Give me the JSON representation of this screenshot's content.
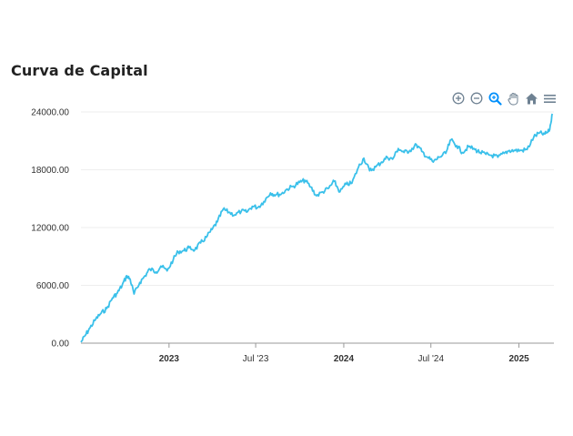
{
  "header": {
    "title": "Curva de Capital"
  },
  "toolbar": {
    "icons": [
      "zoom-in-icon",
      "zoom-out-icon",
      "zoom-selection-icon",
      "pan-hand-icon",
      "reset-home-icon",
      "menu-icon"
    ]
  },
  "colors": {
    "line": "#3ac0ea",
    "grid": "#eeeeee",
    "axis": "#999999",
    "tool": "#6e8192",
    "tool_active": "#008ffb"
  },
  "chart_data": {
    "type": "line",
    "title": "Curva de Capital",
    "xlabel": "",
    "ylabel": "",
    "xlim": [
      "2022-07-01",
      "2025-03-15"
    ],
    "ylim": [
      0,
      24000
    ],
    "grid": true,
    "y_ticks": [
      "24000.00",
      "18000.00",
      "12000.00",
      "6000.00",
      "0.00"
    ],
    "y_tick_values": [
      24000,
      18000,
      12000,
      6000,
      0
    ],
    "x_ticks": [
      {
        "label": "2023",
        "date": "2023-01-01",
        "bold": true
      },
      {
        "label": "Jul '23",
        "date": "2023-07-01",
        "bold": false
      },
      {
        "label": "2024",
        "date": "2024-01-01",
        "bold": true
      },
      {
        "label": "Jul '24",
        "date": "2024-07-01",
        "bold": false
      },
      {
        "label": "2025",
        "date": "2025-01-01",
        "bold": true
      }
    ],
    "series": [
      {
        "x": [
          "2022-07-01",
          "2022-07-10",
          "2022-07-20",
          "2022-08-01",
          "2022-08-12",
          "2022-08-24",
          "2022-09-05",
          "2022-09-15",
          "2022-09-25",
          "2022-10-05",
          "2022-10-12",
          "2022-10-20",
          "2022-11-01",
          "2022-11-12",
          "2022-11-22",
          "2022-12-05",
          "2022-12-15",
          "2022-12-28",
          "2023-01-10",
          "2023-01-20",
          "2023-02-01",
          "2023-02-12",
          "2023-02-24",
          "2023-03-08",
          "2023-03-20",
          "2023-04-01",
          "2023-04-12",
          "2023-04-24",
          "2023-05-06",
          "2023-05-18",
          "2023-06-01",
          "2023-06-12",
          "2023-06-24",
          "2023-07-06",
          "2023-07-18",
          "2023-08-01",
          "2023-08-12",
          "2023-08-24",
          "2023-09-05",
          "2023-09-18",
          "2023-10-01",
          "2023-10-12",
          "2023-10-24",
          "2023-11-05",
          "2023-11-18",
          "2023-12-01",
          "2023-12-12",
          "2023-12-24",
          "2024-01-06",
          "2024-01-18",
          "2024-02-01",
          "2024-02-12",
          "2024-02-24",
          "2024-03-08",
          "2024-03-20",
          "2024-04-01",
          "2024-04-12",
          "2024-04-24",
          "2024-05-06",
          "2024-05-18",
          "2024-06-01",
          "2024-06-12",
          "2024-06-24",
          "2024-07-06",
          "2024-07-18",
          "2024-08-01",
          "2024-08-12",
          "2024-08-24",
          "2024-09-05",
          "2024-09-18",
          "2024-10-01",
          "2024-10-12",
          "2024-10-24",
          "2024-11-05",
          "2024-11-18",
          "2024-12-01",
          "2024-12-12",
          "2024-12-24",
          "2025-01-06",
          "2025-01-18",
          "2025-02-01",
          "2025-02-12",
          "2025-02-24",
          "2025-03-05",
          "2025-03-12"
        ],
        "values": [
          100,
          800,
          1600,
          2500,
          3100,
          3600,
          4700,
          5200,
          6000,
          7000,
          6600,
          5100,
          6300,
          7000,
          7700,
          7400,
          8000,
          7500,
          8700,
          9500,
          9600,
          9900,
          9700,
          10400,
          11000,
          11800,
          12600,
          13900,
          13600,
          13300,
          13700,
          13600,
          14200,
          14100,
          14700,
          15600,
          15400,
          15500,
          16000,
          16300,
          16700,
          16900,
          16200,
          15300,
          15700,
          16100,
          16800,
          15700,
          16500,
          16600,
          18300,
          19200,
          17900,
          18300,
          18800,
          19300,
          19100,
          20200,
          19800,
          20000,
          20600,
          19900,
          19300,
          18800,
          19300,
          19700,
          21100,
          20500,
          19800,
          20400,
          20100,
          19800,
          19600,
          19500,
          19300,
          19700,
          20000,
          20000,
          20000,
          20100,
          21400,
          21800,
          21700,
          22000,
          23800
        ]
      }
    ]
  }
}
